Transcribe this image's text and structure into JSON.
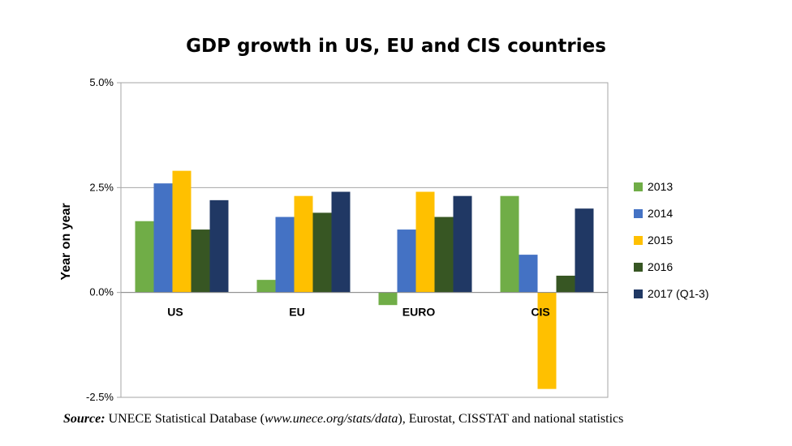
{
  "chart_data": {
    "type": "bar",
    "title": "GDP growth in US, EU and CIS countries",
    "ylabel": "Year on year",
    "xlabel": "",
    "categories": [
      "US",
      "EU",
      "EURO",
      "CIS"
    ],
    "ylim": [
      -2.5,
      5.0
    ],
    "yticks": [
      "-2.5%",
      "0.0%",
      "2.5%",
      "5.0%"
    ],
    "ytick_values": [
      -2.5,
      0,
      2.5,
      5.0
    ],
    "grid": true,
    "legend_position": "right",
    "series": [
      {
        "name": "2013",
        "color": "#70ad47",
        "values": [
          1.7,
          0.3,
          -0.3,
          2.3
        ]
      },
      {
        "name": "2014",
        "color": "#4472c4",
        "values": [
          2.6,
          1.8,
          1.5,
          0.9
        ]
      },
      {
        "name": "2015",
        "color": "#ffc000",
        "values": [
          2.9,
          2.3,
          2.4,
          -2.3
        ]
      },
      {
        "name": "2016",
        "color": "#375623",
        "values": [
          1.5,
          1.9,
          1.8,
          0.4
        ]
      },
      {
        "name": "2017 (Q1-3)",
        "color": "#203864",
        "values": [
          2.2,
          2.4,
          2.3,
          2.0
        ]
      }
    ]
  },
  "source": {
    "label": "Source:",
    "text_before": " UNECE Statistical Database (",
    "url": "www.unece.org/stats/data",
    "text_after": "), Eurostat, CISSTAT and national statistics"
  }
}
